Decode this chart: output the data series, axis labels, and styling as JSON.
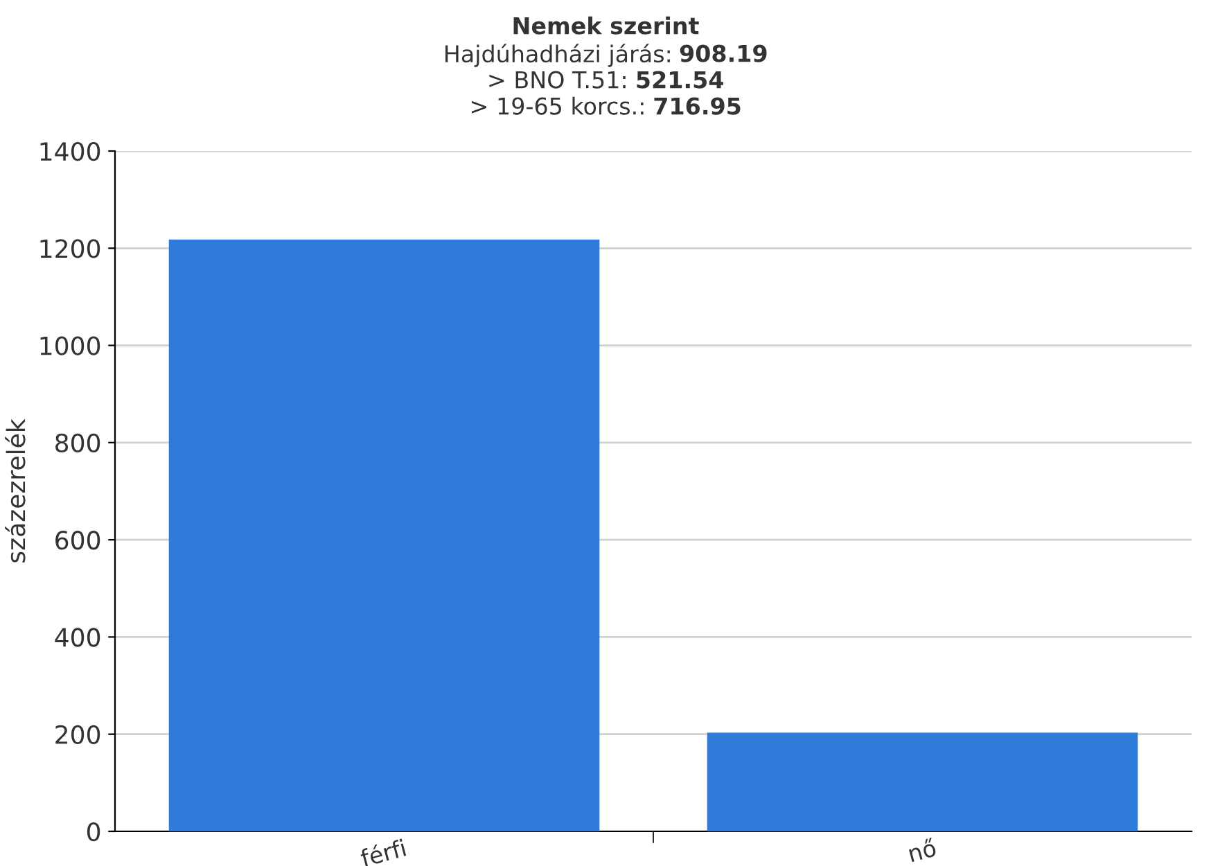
{
  "chart_data": {
    "type": "bar",
    "title": "Nemek szerint",
    "subtitle": "Hajdúhadházi járás: 908.19\n> BNO T.51: 521.54\n> 19-65 korcs.: 716.95",
    "ylabel": "százezrelék",
    "categories": [
      "férfi",
      "nő"
    ],
    "values": [
      1218,
      203
    ],
    "color": "#2e7bd9",
    "ylim": [
      0,
      1400
    ],
    "yticks": [
      0,
      200,
      400,
      600,
      800,
      1000,
      1200,
      1400
    ],
    "grid": "y",
    "legend": false
  }
}
